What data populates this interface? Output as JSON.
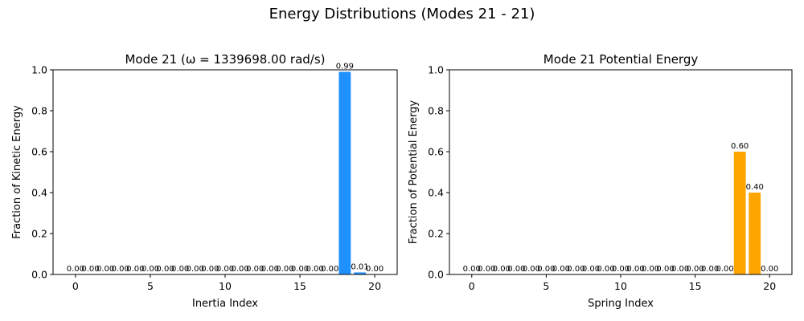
{
  "suptitle": "Energy Distributions (Modes 21 - 21)",
  "chart_data": [
    {
      "type": "bar",
      "title": "Mode 21 (ω = 1339698.00 rad/s)",
      "xlabel": "Inertia Index",
      "ylabel": "Fraction of Kinetic Energy",
      "color": "#1e90ff",
      "x": [
        0,
        1,
        2,
        3,
        4,
        5,
        6,
        7,
        8,
        9,
        10,
        11,
        12,
        13,
        14,
        15,
        16,
        17,
        18,
        19,
        20
      ],
      "values": [
        0,
        0,
        0,
        0,
        0,
        0,
        0,
        0,
        0,
        0,
        0,
        0,
        0,
        0,
        0,
        0,
        0,
        0,
        0.99,
        0.01,
        0
      ],
      "value_labels": [
        "0.00",
        "0.00",
        "0.00",
        "0.00",
        "0.00",
        "0.00",
        "0.00",
        "0.00",
        "0.00",
        "0.00",
        "0.00",
        "0.00",
        "0.00",
        "0.00",
        "0.00",
        "0.00",
        "0.00",
        "0.00",
        "0.99",
        "0.01",
        "0.00"
      ],
      "xlim": [
        -1.5,
        21.5
      ],
      "ylim": [
        0,
        1
      ],
      "xticks": [
        0,
        5,
        10,
        15,
        20
      ],
      "xtick_labels": [
        "0",
        "5",
        "10",
        "15",
        "20"
      ],
      "yticks": [
        0,
        0.2,
        0.4,
        0.6,
        0.8,
        1.0
      ],
      "ytick_labels": [
        "0.0",
        "0.2",
        "0.4",
        "0.6",
        "0.8",
        "1.0"
      ],
      "grid": false
    },
    {
      "type": "bar",
      "title": "Mode 21 Potential Energy",
      "xlabel": "Spring Index",
      "ylabel": "Fraction of Potential Energy",
      "color": "#ffa500",
      "x": [
        0,
        1,
        2,
        3,
        4,
        5,
        6,
        7,
        8,
        9,
        10,
        11,
        12,
        13,
        14,
        15,
        16,
        17,
        18,
        19,
        20
      ],
      "values": [
        0,
        0,
        0,
        0,
        0,
        0,
        0,
        0,
        0,
        0,
        0,
        0,
        0,
        0,
        0,
        0,
        0,
        0,
        0.6,
        0.4,
        0
      ],
      "value_labels": [
        "0.00",
        "0.00",
        "0.00",
        "0.00",
        "0.00",
        "0.00",
        "0.00",
        "0.00",
        "0.00",
        "0.00",
        "0.00",
        "0.00",
        "0.00",
        "0.00",
        "0.00",
        "0.00",
        "0.00",
        "0.00",
        "0.60",
        "0.40",
        "0.00"
      ],
      "xlim": [
        -1.5,
        21.5
      ],
      "ylim": [
        0,
        1
      ],
      "xticks": [
        0,
        5,
        10,
        15,
        20
      ],
      "xtick_labels": [
        "0",
        "5",
        "10",
        "15",
        "20"
      ],
      "yticks": [
        0,
        0.2,
        0.4,
        0.6,
        0.8,
        1.0
      ],
      "ytick_labels": [
        "0.0",
        "0.2",
        "0.4",
        "0.6",
        "0.8",
        "1.0"
      ],
      "grid": false
    }
  ]
}
